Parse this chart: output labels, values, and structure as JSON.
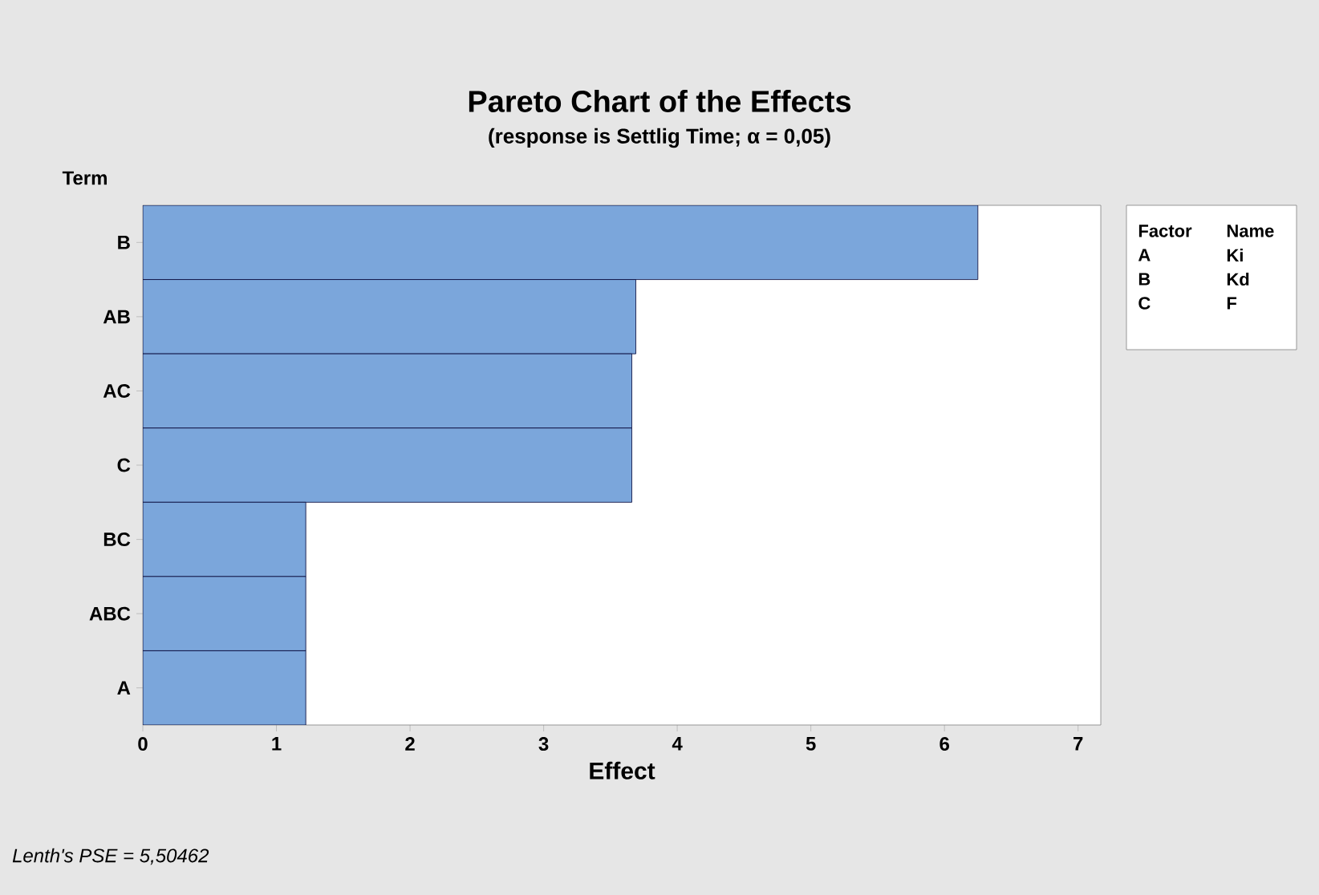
{
  "chart_data": {
    "type": "bar",
    "orientation": "horizontal",
    "title": "Pareto Chart of the Effects",
    "subtitle": "(response is Settlig Time; α = 0,05)",
    "xlabel": "Effect",
    "ylabel": "Term",
    "categories": [
      "B",
      "AB",
      "AC",
      "C",
      "BC",
      "ABC",
      "A"
    ],
    "values": [
      6.25,
      3.69,
      3.66,
      3.66,
      1.22,
      1.22,
      1.22
    ],
    "color": "#7ba6db",
    "xlim": [
      0,
      7.17
    ],
    "xticks": [
      0,
      1,
      2,
      3,
      4,
      5,
      6,
      7
    ],
    "annotations": [
      "Factor",
      "Name",
      "A",
      "Ki",
      "B",
      "Kd",
      "C",
      "F",
      "Lenth's PSE = 5,50462"
    ]
  }
}
